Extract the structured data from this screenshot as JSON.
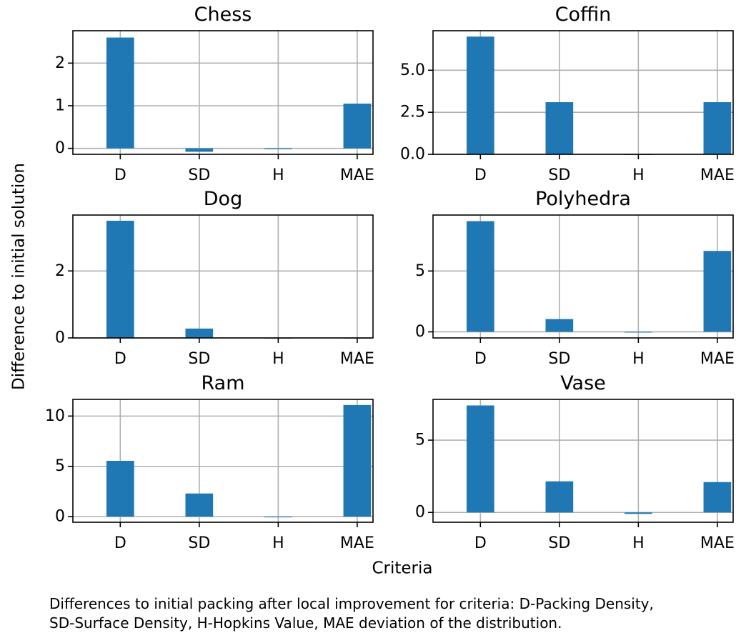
{
  "figure": {
    "ylabel": "Difference to initial solution",
    "xlabel": "Criteria",
    "bar_color": "#1f77b4",
    "grid_color": "#b0b0b0"
  },
  "caption": {
    "line1": "Differences to initial packing after local improvement for criteria: D-Packing Density,",
    "line2": "SD-Surface Density, H-Hopkins Value, MAE deviation of the distribution."
  },
  "chart_data": [
    {
      "type": "bar",
      "title": "Chess",
      "categories": [
        "D",
        "SD",
        "H",
        "MAE"
      ],
      "values": [
        2.6,
        -0.08,
        -0.02,
        1.05
      ],
      "ylim": [
        -0.14,
        2.76
      ],
      "yticks": [
        0,
        1,
        2
      ],
      "ytick_labels": [
        "0",
        "1",
        "2"
      ],
      "grid": true
    },
    {
      "type": "bar",
      "title": "Coffin",
      "categories": [
        "D",
        "SD",
        "H",
        "MAE"
      ],
      "values": [
        7.0,
        3.1,
        0.0,
        3.1
      ],
      "ylim": [
        0,
        7.35
      ],
      "yticks": [
        0,
        2.5,
        5.0
      ],
      "ytick_labels": [
        "0.0",
        "2.5",
        "5.0"
      ],
      "grid": true
    },
    {
      "type": "bar",
      "title": "Dog",
      "categories": [
        "D",
        "SD",
        "H",
        "MAE"
      ],
      "values": [
        3.5,
        0.28,
        0.0,
        0.0
      ],
      "ylim": [
        0,
        3.67
      ],
      "yticks": [
        0,
        2
      ],
      "ytick_labels": [
        "0",
        "2"
      ],
      "grid": true
    },
    {
      "type": "bar",
      "title": "Polyhedra",
      "categories": [
        "D",
        "SD",
        "H",
        "MAE"
      ],
      "values": [
        9.1,
        1.05,
        -0.05,
        6.65
      ],
      "ylim": [
        -0.5,
        9.6
      ],
      "yticks": [
        0,
        5
      ],
      "ytick_labels": [
        "0",
        "5"
      ],
      "grid": true
    },
    {
      "type": "bar",
      "title": "Ram",
      "categories": [
        "D",
        "SD",
        "H",
        "MAE"
      ],
      "values": [
        5.55,
        2.3,
        -0.05,
        11.1
      ],
      "ylim": [
        -0.56,
        11.66
      ],
      "yticks": [
        0,
        5,
        10
      ],
      "ytick_labels": [
        "0",
        "5",
        "10"
      ],
      "grid": true
    },
    {
      "type": "bar",
      "title": "Vase",
      "categories": [
        "D",
        "SD",
        "H",
        "MAE"
      ],
      "values": [
        7.4,
        2.15,
        -0.1,
        2.1
      ],
      "ylim": [
        -0.68,
        7.82
      ],
      "yticks": [
        0,
        5
      ],
      "ytick_labels": [
        "0",
        "5"
      ],
      "grid": true
    }
  ]
}
